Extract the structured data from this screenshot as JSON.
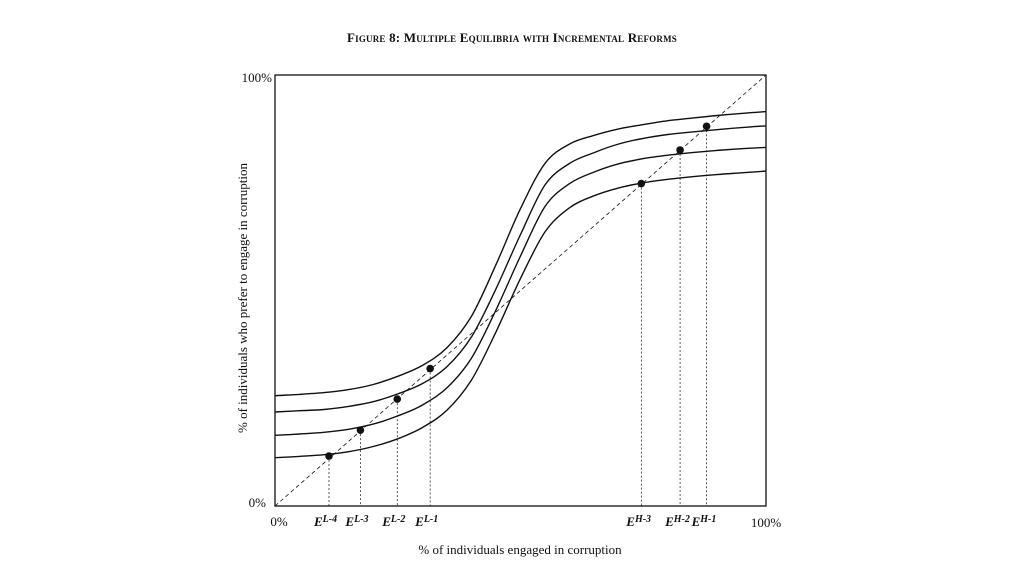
{
  "chart_data": {
    "type": "line",
    "title": "Figure 8: Multiple Equilibria with Incremental Reforms",
    "xlabel": "% of individuals engaged in corruption",
    "ylabel": "% of individuals who prefer to engage in corruption",
    "xlim": [
      0,
      100
    ],
    "ylim": [
      0,
      100
    ],
    "x_ticks": [
      "0%",
      "100%"
    ],
    "y_ticks": [
      "0%",
      "100%"
    ],
    "grid": false,
    "series": [
      {
        "style": "dashed",
        "x": [
          0,
          100
        ],
        "y": [
          0,
          100
        ]
      },
      {
        "style": "solid",
        "x": [
          0,
          5,
          10,
          15,
          20,
          25,
          30,
          35,
          40,
          45,
          50,
          55,
          60,
          65,
          70,
          75,
          80,
          85,
          90,
          95,
          100
        ],
        "y": [
          25.6,
          25.9,
          26.3,
          27.0,
          28.2,
          30.1,
          32.6,
          36.7,
          44.0,
          56.0,
          69.0,
          79.5,
          84.0,
          86.0,
          87.5,
          88.5,
          89.4,
          90.0,
          90.6,
          91.1,
          91.5
        ]
      },
      {
        "style": "solid",
        "x": [
          0,
          5,
          10,
          15,
          20,
          25,
          30,
          35,
          40,
          45,
          50,
          55,
          60,
          65,
          70,
          75,
          80,
          85,
          90,
          95,
          100
        ],
        "y": [
          21.8,
          22.1,
          22.4,
          23.1,
          24.2,
          26.0,
          28.4,
          32.3,
          39.2,
          50.4,
          63.0,
          74.5,
          79.5,
          82.0,
          84.0,
          85.3,
          86.2,
          86.8,
          87.3,
          87.8,
          88.2
        ]
      },
      {
        "style": "solid",
        "x": [
          0,
          5,
          10,
          15,
          20,
          25,
          30,
          35,
          40,
          45,
          50,
          55,
          60,
          65,
          70,
          75,
          80,
          85,
          90,
          95,
          100
        ],
        "y": [
          16.4,
          16.7,
          17.1,
          17.8,
          19.0,
          20.9,
          23.4,
          27.4,
          34.3,
          45.5,
          58.0,
          69.5,
          74.8,
          77.5,
          79.4,
          80.6,
          81.4,
          82.0,
          82.5,
          82.9,
          83.2
        ]
      },
      {
        "style": "solid",
        "x": [
          0,
          5,
          10,
          15,
          20,
          25,
          30,
          35,
          40,
          45,
          50,
          55,
          60,
          65,
          70,
          75,
          80,
          85,
          90,
          95,
          100
        ],
        "y": [
          11.2,
          11.5,
          11.9,
          12.6,
          13.8,
          15.6,
          18.2,
          22.2,
          29.2,
          40.4,
          52.8,
          63.6,
          69.2,
          72.0,
          73.8,
          75.0,
          75.8,
          76.4,
          76.9,
          77.3,
          77.7
        ]
      }
    ],
    "equilibria": [
      {
        "label": "E",
        "sup": "L-4",
        "x": 11.0,
        "y": 11.6
      },
      {
        "label": "E",
        "sup": "L-3",
        "x": 17.4,
        "y": 17.6
      },
      {
        "label": "E",
        "sup": "L-2",
        "x": 24.9,
        "y": 24.8
      },
      {
        "label": "E",
        "sup": "L-1",
        "x": 31.6,
        "y": 31.9
      },
      {
        "label": "E",
        "sup": "H-3",
        "x": 74.6,
        "y": 74.8
      },
      {
        "label": "E",
        "sup": "H-2",
        "x": 82.5,
        "y": 82.6
      },
      {
        "label": "E",
        "sup": "H-1",
        "x": 87.9,
        "y": 88.1
      }
    ]
  }
}
